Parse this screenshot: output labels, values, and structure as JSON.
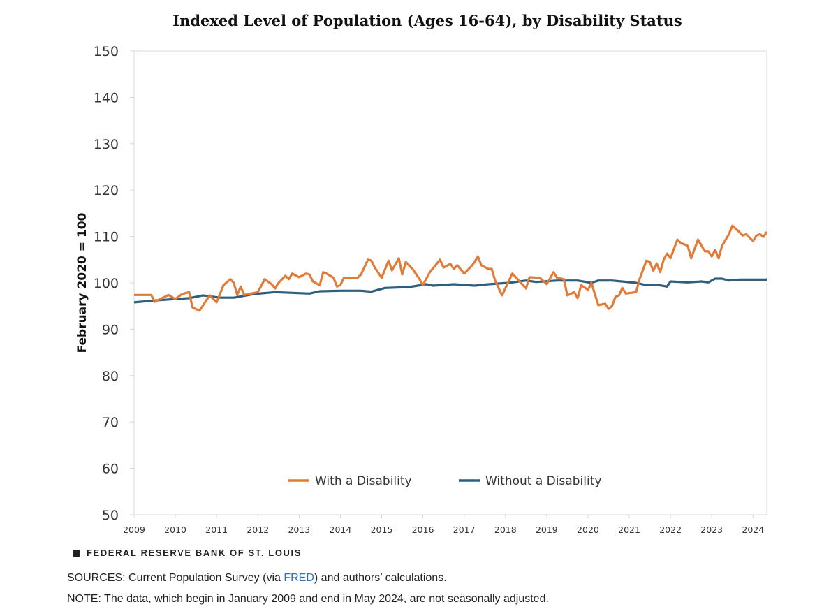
{
  "chart_data": {
    "type": "line",
    "title": "Indexed Level of Population (Ages 16-64), by Disability Status",
    "ylabel": "February 2020 = 100",
    "xlabel": "",
    "ylim": [
      50,
      150
    ],
    "yticks": [
      "50",
      "60",
      "70",
      "80",
      "90",
      "100",
      "110",
      "120",
      "130",
      "140",
      "150"
    ],
    "xticks": [
      "2009",
      "2010",
      "2011",
      "2012",
      "2013",
      "2014",
      "2015",
      "2016",
      "2017",
      "2018",
      "2019",
      "2020",
      "2021",
      "2022",
      "2023",
      "2024"
    ],
    "xrange": [
      "2009-01",
      "2024-05"
    ],
    "grid": "top line only",
    "legend_placement": "bottom-center inside plot",
    "series": [
      {
        "name": "With a Disability",
        "color": "#e07b39",
        "points": [
          [
            "2009-01",
            97.4
          ],
          [
            "2009-06",
            97.4
          ],
          [
            "2009-07",
            95.9
          ],
          [
            "2009-11",
            97.4
          ],
          [
            "2010-01",
            96.5
          ],
          [
            "2010-03",
            97.6
          ],
          [
            "2010-05",
            98.0
          ],
          [
            "2010-06",
            94.7
          ],
          [
            "2010-08",
            94.0
          ],
          [
            "2010-11",
            97.3
          ],
          [
            "2011-01",
            95.8
          ],
          [
            "2011-03",
            99.5
          ],
          [
            "2011-05",
            100.8
          ],
          [
            "2011-06",
            100.0
          ],
          [
            "2011-07",
            97.4
          ],
          [
            "2011-08",
            99.2
          ],
          [
            "2011-09",
            97.4
          ],
          [
            "2012-01",
            98.0
          ],
          [
            "2012-03",
            100.8
          ],
          [
            "2012-05",
            99.7
          ],
          [
            "2012-06",
            98.8
          ],
          [
            "2012-07",
            100.0
          ],
          [
            "2012-09",
            101.5
          ],
          [
            "2012-10",
            100.8
          ],
          [
            "2012-11",
            102.0
          ],
          [
            "2013-01",
            101.2
          ],
          [
            "2013-03",
            102.0
          ],
          [
            "2013-04",
            101.8
          ],
          [
            "2013-05",
            100.3
          ],
          [
            "2013-07",
            99.5
          ],
          [
            "2013-08",
            102.3
          ],
          [
            "2013-09",
            102.0
          ],
          [
            "2013-11",
            101.1
          ],
          [
            "2013-12",
            99.2
          ],
          [
            "2014-01",
            99.5
          ],
          [
            "2014-02",
            101.1
          ],
          [
            "2014-06",
            101.1
          ],
          [
            "2014-07",
            101.8
          ],
          [
            "2014-09",
            105.0
          ],
          [
            "2014-10",
            104.8
          ],
          [
            "2014-11",
            103.3
          ],
          [
            "2015-01",
            101.1
          ],
          [
            "2015-03",
            104.8
          ],
          [
            "2015-04",
            102.7
          ],
          [
            "2015-06",
            105.3
          ],
          [
            "2015-07",
            101.8
          ],
          [
            "2015-08",
            104.5
          ],
          [
            "2015-10",
            103.0
          ],
          [
            "2015-12",
            100.8
          ],
          [
            "2016-01",
            99.5
          ],
          [
            "2016-03",
            102.3
          ],
          [
            "2016-06",
            105.0
          ],
          [
            "2016-07",
            103.3
          ],
          [
            "2016-09",
            104.1
          ],
          [
            "2016-10",
            103.0
          ],
          [
            "2016-11",
            103.8
          ],
          [
            "2017-01",
            102.0
          ],
          [
            "2017-03",
            103.5
          ],
          [
            "2017-04",
            104.5
          ],
          [
            "2017-05",
            105.7
          ],
          [
            "2017-06",
            103.8
          ],
          [
            "2017-08",
            103.0
          ],
          [
            "2017-09",
            103.0
          ],
          [
            "2017-10",
            100.5
          ],
          [
            "2017-12",
            97.3
          ],
          [
            "2018-03",
            102.0
          ],
          [
            "2018-04",
            101.2
          ],
          [
            "2018-07",
            98.8
          ],
          [
            "2018-08",
            101.2
          ],
          [
            "2018-11",
            101.1
          ],
          [
            "2019-01",
            99.7
          ],
          [
            "2019-03",
            102.3
          ],
          [
            "2019-04",
            101.1
          ],
          [
            "2019-06",
            100.8
          ],
          [
            "2019-07",
            97.3
          ],
          [
            "2019-09",
            98.0
          ],
          [
            "2019-10",
            96.7
          ],
          [
            "2019-11",
            99.5
          ],
          [
            "2020-01",
            98.5
          ],
          [
            "2020-02",
            100.0
          ],
          [
            "2020-04",
            95.2
          ],
          [
            "2020-06",
            95.5
          ],
          [
            "2020-07",
            94.4
          ],
          [
            "2020-08",
            95.0
          ],
          [
            "2020-09",
            97.0
          ],
          [
            "2020-10",
            97.3
          ],
          [
            "2020-11",
            98.9
          ],
          [
            "2020-12",
            97.7
          ],
          [
            "2021-03",
            98.0
          ],
          [
            "2021-04",
            100.8
          ],
          [
            "2021-06",
            104.8
          ],
          [
            "2021-07",
            104.5
          ],
          [
            "2021-08",
            102.6
          ],
          [
            "2021-09",
            104.2
          ],
          [
            "2021-10",
            102.3
          ],
          [
            "2021-11",
            105.0
          ],
          [
            "2021-12",
            106.3
          ],
          [
            "2022-01",
            105.3
          ],
          [
            "2022-03",
            109.3
          ],
          [
            "2022-04",
            108.6
          ],
          [
            "2022-06",
            108.0
          ],
          [
            "2022-07",
            105.3
          ],
          [
            "2022-09",
            109.3
          ],
          [
            "2022-11",
            106.8
          ],
          [
            "2022-12",
            106.8
          ],
          [
            "2023-01",
            105.7
          ],
          [
            "2023-02",
            107.1
          ],
          [
            "2023-03",
            105.3
          ],
          [
            "2023-04",
            108.0
          ],
          [
            "2023-06",
            110.5
          ],
          [
            "2023-07",
            112.3
          ],
          [
            "2023-09",
            111.0
          ],
          [
            "2023-10",
            110.2
          ],
          [
            "2023-11",
            110.5
          ],
          [
            "2024-01",
            109.0
          ],
          [
            "2024-02",
            110.2
          ],
          [
            "2024-03",
            110.5
          ],
          [
            "2024-04",
            109.9
          ],
          [
            "2024-05",
            111.0
          ]
        ]
      },
      {
        "name": "Without a Disability",
        "color": "#2e5f7f",
        "points": [
          [
            "2009-01",
            95.8
          ],
          [
            "2009-07",
            96.2
          ],
          [
            "2010-01",
            96.5
          ],
          [
            "2010-05",
            96.7
          ],
          [
            "2010-09",
            97.3
          ],
          [
            "2011-02",
            96.8
          ],
          [
            "2011-06",
            96.8
          ],
          [
            "2011-12",
            97.6
          ],
          [
            "2012-06",
            98.0
          ],
          [
            "2013-04",
            97.7
          ],
          [
            "2013-07",
            98.2
          ],
          [
            "2014-01",
            98.3
          ],
          [
            "2014-07",
            98.3
          ],
          [
            "2014-10",
            98.1
          ],
          [
            "2015-02",
            98.9
          ],
          [
            "2015-09",
            99.1
          ],
          [
            "2016-02",
            99.7
          ],
          [
            "2016-04",
            99.4
          ],
          [
            "2016-10",
            99.7
          ],
          [
            "2017-04",
            99.4
          ],
          [
            "2017-08",
            99.7
          ],
          [
            "2018-02",
            100.0
          ],
          [
            "2018-07",
            100.5
          ],
          [
            "2018-10",
            100.2
          ],
          [
            "2019-04",
            100.5
          ],
          [
            "2019-10",
            100.5
          ],
          [
            "2020-02",
            100.0
          ],
          [
            "2020-04",
            100.5
          ],
          [
            "2020-08",
            100.5
          ],
          [
            "2021-03",
            100.0
          ],
          [
            "2021-06",
            99.5
          ],
          [
            "2021-09",
            99.6
          ],
          [
            "2021-12",
            99.2
          ],
          [
            "2022-01",
            100.3
          ],
          [
            "2022-06",
            100.1
          ],
          [
            "2022-10",
            100.3
          ],
          [
            "2022-12",
            100.1
          ],
          [
            "2023-02",
            100.9
          ],
          [
            "2023-04",
            100.9
          ],
          [
            "2023-06",
            100.5
          ],
          [
            "2023-09",
            100.7
          ],
          [
            "2024-05",
            100.7
          ]
        ]
      }
    ]
  },
  "footer": {
    "brand": "FEDERAL RESERVE BANK OF ST. LOUIS",
    "sources_prefix": "SOURCES: Current Population Survey (via ",
    "sources_link": "FRED",
    "sources_suffix": ") and authors’ calculations.",
    "note": "NOTE: The data, which begin in January 2009 and end in May 2024, are not seasonally adjusted.",
    "link_color": "#2f6db5"
  }
}
